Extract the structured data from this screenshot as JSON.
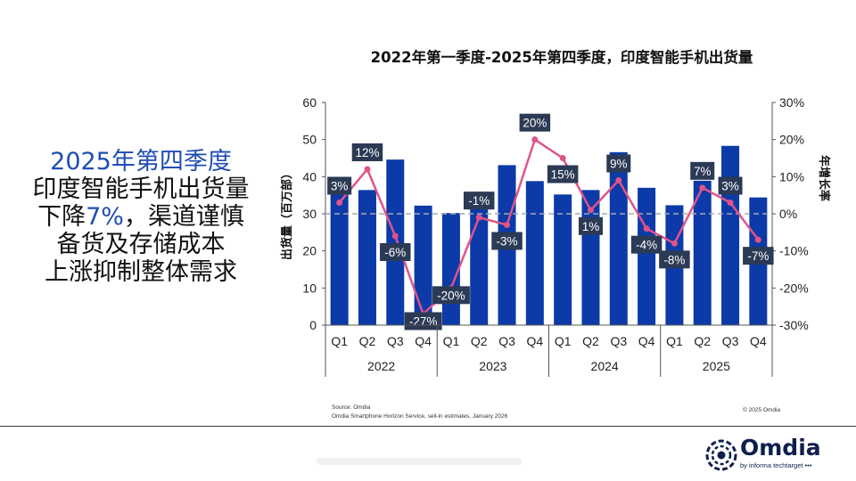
{
  "headline": {
    "line1": "2025年第四季度",
    "line2": "印度智能手机出货量",
    "line3_prefix": "下降",
    "line3_highlight": "7%",
    "line3_suffix": "，渠道谨慎",
    "line4": "备货及存储成本",
    "line5": "上涨抑制整体需求"
  },
  "footer": {
    "source": "Source: Omdia",
    "note": "Omdia Smartphone Horizon Service, sell-in estimates, January 2026",
    "copyright": "© 2025 Omdia"
  },
  "logo": {
    "wordmark": "Omdia",
    "tagline": "by informa techtarget •••"
  },
  "colors": {
    "bar": "#0c3aa8",
    "line": "#e0538a",
    "label_box": "#2b3a55",
    "zero_line": "#a6aab3"
  },
  "chart_data": {
    "type": "bar",
    "title": "2022年第一季度-2025年第四季度，印度智能手机出货量",
    "ylabel": "出货量（百万部）",
    "y2label": "年增长率",
    "ylim": [
      0,
      60
    ],
    "y2lim": [
      -30,
      30
    ],
    "y_ticks": [
      "0",
      "10",
      "20",
      "30",
      "40",
      "50",
      "60"
    ],
    "y2_ticks": [
      "-30%",
      "-20%",
      "-10%",
      "0%",
      "10%",
      "20%",
      "30%"
    ],
    "categories": [
      "Q1",
      "Q2",
      "Q3",
      "Q4",
      "Q1",
      "Q2",
      "Q3",
      "Q4",
      "Q1",
      "Q2",
      "Q3",
      "Q4",
      "Q1",
      "Q2",
      "Q3",
      "Q4"
    ],
    "years": [
      "2022",
      "2023",
      "2024",
      "2025"
    ],
    "series": [
      {
        "values": [
          38,
          36.4,
          44.6,
          32.2,
          30.2,
          35.9,
          43.1,
          38.8,
          35.2,
          36.4,
          46.6,
          37,
          32.3,
          38.9,
          48.3,
          34.4
        ]
      },
      {
        "values": [
          3,
          12,
          -6,
          -27,
          -20,
          -1,
          -3,
          20,
          15,
          1,
          9,
          -4,
          -8,
          7,
          3,
          -7
        ]
      }
    ],
    "growth_labels": [
      "3%",
      "12%",
      "-6%",
      "-27%",
      "-20%",
      "-1%",
      "-3%",
      "20%",
      "15%",
      "1%",
      "9%",
      "-4%",
      "-8%",
      "7%",
      "3%",
      "-7%"
    ],
    "grid": false,
    "legend": "none"
  }
}
